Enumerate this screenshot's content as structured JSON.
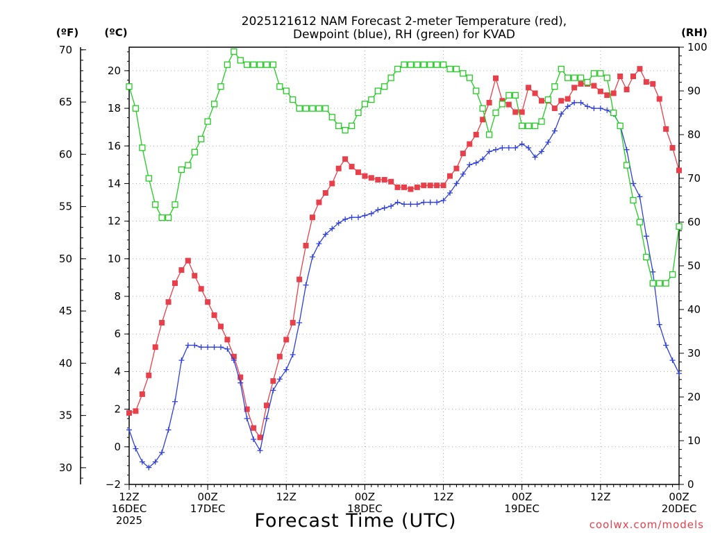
{
  "chart_data": {
    "type": "line",
    "title_line1": "2025121612 NAM Forecast 2-meter Temperature (red),",
    "title_line2": "Dewpoint (blue), RH (green) for KVAD",
    "xlabel": "Forecast Time (UTC)",
    "credit": "coolwx.com/models",
    "units": {
      "fahrenheit": "(ºF)",
      "celsius": "(ºC)",
      "rh": "(RH)"
    },
    "x_range_hours": [
      0,
      84
    ],
    "y_celsius_range": [
      -2,
      21.25
    ],
    "y_fahrenheit_range": [
      28.4,
      70.25
    ],
    "y_rh_range": [
      0,
      100
    ],
    "celsius_ticks": [
      "−2",
      "0",
      "2",
      "4",
      "6",
      "8",
      "10",
      "12",
      "14",
      "16",
      "18",
      "20"
    ],
    "fahrenheit_ticks": [
      "30",
      "35",
      "40",
      "45",
      "50",
      "55",
      "60",
      "65",
      "70"
    ],
    "rh_ticks": [
      "0",
      "10",
      "20",
      "30",
      "40",
      "50",
      "60",
      "70",
      "80",
      "90",
      "100"
    ],
    "x_ticks": [
      {
        "hour": 0,
        "lines": [
          "12Z",
          "16DEC",
          "2025"
        ]
      },
      {
        "hour": 12,
        "lines": [
          "00Z",
          "17DEC"
        ]
      },
      {
        "hour": 24,
        "lines": [
          "12Z"
        ]
      },
      {
        "hour": 36,
        "lines": [
          "00Z",
          "18DEC"
        ]
      },
      {
        "hour": 48,
        "lines": [
          "12Z"
        ]
      },
      {
        "hour": 60,
        "lines": [
          "00Z",
          "19DEC"
        ]
      },
      {
        "hour": 72,
        "lines": [
          "12Z"
        ]
      },
      {
        "hour": 84,
        "lines": [
          "00Z",
          "20DEC"
        ]
      }
    ],
    "grid": true,
    "colors": {
      "temperature": "#e8404a",
      "dewpoint": "#2e3fd8",
      "rh": "#22cc22"
    },
    "series": [
      {
        "key": "temperature",
        "marker": "filled-square",
        "x": [
          0,
          1,
          2,
          3,
          4,
          5,
          6,
          7,
          8,
          9,
          10,
          11,
          12,
          13,
          14,
          15,
          16,
          17,
          18,
          19,
          20,
          21,
          22,
          23,
          24,
          25,
          26,
          27,
          28,
          29,
          30,
          31,
          32,
          33,
          34,
          35,
          36,
          37,
          38,
          39,
          40,
          41,
          42,
          43,
          44,
          45,
          46,
          47,
          48,
          49,
          50,
          51,
          52,
          53,
          54,
          55,
          56,
          57,
          58,
          59,
          60,
          61,
          62,
          63,
          64,
          65,
          66,
          67,
          68,
          69,
          70,
          71,
          72,
          73,
          74,
          75,
          76,
          77,
          78,
          79,
          80,
          81,
          82,
          83,
          84
        ],
        "values": [
          1.8,
          1.9,
          2.8,
          3.8,
          5.3,
          6.6,
          7.7,
          8.7,
          9.4,
          9.9,
          9.1,
          8.4,
          7.7,
          7.0,
          6.4,
          5.7,
          4.8,
          3.7,
          2.0,
          1.0,
          0.5,
          2.2,
          3.5,
          4.8,
          5.7,
          6.6,
          8.9,
          10.7,
          12.2,
          13.0,
          13.5,
          14.0,
          14.8,
          15.3,
          14.9,
          14.6,
          14.4,
          14.3,
          14.2,
          14.2,
          14.1,
          13.8,
          13.8,
          13.7,
          13.8,
          13.9,
          13.9,
          13.9,
          13.9,
          14.4,
          14.8,
          15.6,
          16.1,
          16.6,
          17.4,
          18.3,
          19.6,
          18.4,
          18.2,
          17.8,
          17.8,
          19.1,
          18.8,
          18.4,
          18.4,
          18.0,
          18.4,
          18.5,
          19.1,
          19.3,
          19.3,
          19.2,
          18.9,
          18.7,
          18.8,
          19.7,
          19.0,
          19.7,
          20.1,
          19.4,
          19.3,
          18.5,
          16.9,
          15.9,
          14.7
        ]
      },
      {
        "key": "dewpoint",
        "marker": "plus",
        "x": [
          0,
          1,
          2,
          3,
          4,
          5,
          6,
          7,
          8,
          9,
          10,
          11,
          12,
          13,
          14,
          15,
          16,
          17,
          18,
          19,
          20,
          21,
          22,
          23,
          24,
          25,
          26,
          27,
          28,
          29,
          30,
          31,
          32,
          33,
          34,
          35,
          36,
          37,
          38,
          39,
          40,
          41,
          42,
          43,
          44,
          45,
          46,
          47,
          48,
          49,
          50,
          51,
          52,
          53,
          54,
          55,
          56,
          57,
          58,
          59,
          60,
          61,
          62,
          63,
          64,
          65,
          66,
          67,
          68,
          69,
          70,
          71,
          72,
          73,
          74,
          75,
          76,
          77,
          78,
          79,
          80,
          81,
          82,
          83,
          84
        ],
        "values": [
          0.9,
          -0.1,
          -0.8,
          -1.1,
          -0.8,
          -0.3,
          0.9,
          2.4,
          4.6,
          5.4,
          5.4,
          5.3,
          5.3,
          5.3,
          5.3,
          5.2,
          4.6,
          3.4,
          1.5,
          0.4,
          -0.2,
          1.5,
          3.0,
          3.6,
          4.1,
          4.9,
          6.6,
          8.6,
          10.1,
          10.8,
          11.3,
          11.6,
          11.9,
          12.1,
          12.2,
          12.2,
          12.3,
          12.4,
          12.6,
          12.7,
          12.8,
          13.0,
          12.9,
          12.9,
          12.9,
          13.0,
          13.0,
          13.0,
          13.1,
          13.5,
          14.0,
          14.5,
          15.0,
          15.1,
          15.3,
          15.7,
          15.8,
          15.9,
          15.9,
          15.9,
          16.1,
          15.9,
          15.4,
          15.7,
          16.2,
          16.8,
          17.7,
          18.1,
          18.3,
          18.3,
          18.1,
          18.0,
          18.0,
          17.9,
          17.7,
          17.1,
          15.8,
          14.0,
          13.3,
          11.2,
          9.3,
          6.5,
          5.4,
          4.6,
          3.9
        ]
      },
      {
        "key": "rh",
        "marker": "open-square",
        "x": [
          0,
          1,
          2,
          3,
          4,
          5,
          6,
          7,
          8,
          9,
          10,
          11,
          12,
          13,
          14,
          15,
          16,
          17,
          18,
          19,
          20,
          21,
          22,
          23,
          24,
          25,
          26,
          27,
          28,
          29,
          30,
          31,
          32,
          33,
          34,
          35,
          36,
          37,
          38,
          39,
          40,
          41,
          42,
          43,
          44,
          45,
          46,
          47,
          48,
          49,
          50,
          51,
          52,
          53,
          54,
          55,
          56,
          57,
          58,
          59,
          60,
          61,
          62,
          63,
          64,
          65,
          66,
          67,
          68,
          69,
          70,
          71,
          72,
          73,
          74,
          75,
          76,
          77,
          78,
          79,
          80,
          81,
          82,
          83,
          84
        ],
        "values": [
          91,
          86,
          77,
          70,
          64,
          61,
          61,
          64,
          72,
          73,
          76,
          79,
          83,
          87,
          91,
          96,
          99,
          97,
          96,
          96,
          96,
          96,
          96,
          91,
          90,
          88,
          86,
          86,
          86,
          86,
          86,
          84,
          82,
          81,
          82,
          85,
          87,
          88,
          90,
          91,
          93,
          95,
          96,
          96,
          96,
          96,
          96,
          96,
          96,
          95,
          95,
          94,
          93,
          90,
          86,
          80,
          85,
          87,
          89,
          89,
          82,
          82,
          82,
          83,
          88,
          91,
          95,
          93,
          93,
          93,
          92,
          94,
          94,
          93,
          85,
          82,
          73,
          65,
          60,
          52,
          46,
          46,
          46,
          48,
          59
        ]
      }
    ]
  }
}
